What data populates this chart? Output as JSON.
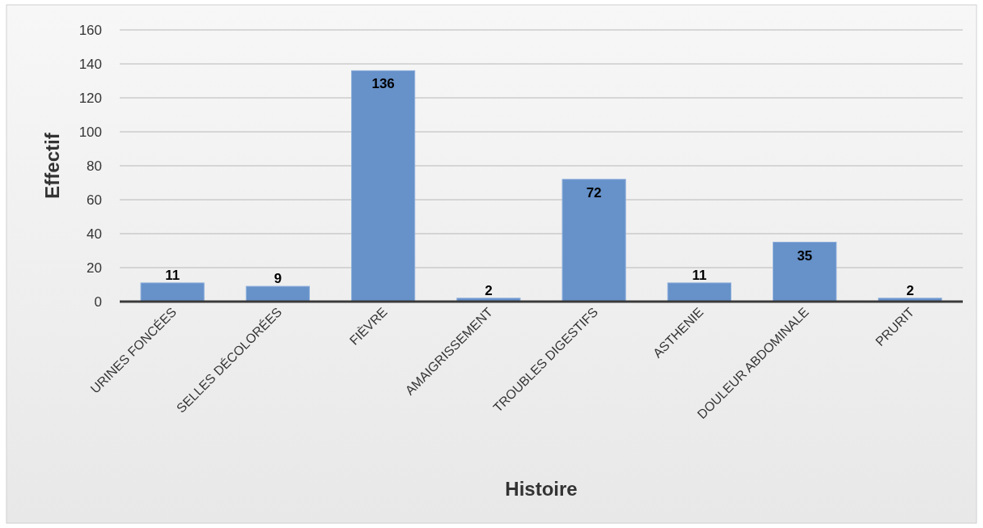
{
  "chart_data": {
    "type": "bar",
    "xlabel": "Histoire",
    "ylabel": "Effectif",
    "categories": [
      "URINES FONCÉES",
      "SELLES DÉCOLORÉES",
      "FIÈVRE",
      "AMAIGRISSEMENT",
      "TROUBLES DIGESTIFS",
      "ASTHENIE",
      "DOULEUR ABDOMINALE",
      "PRURIT"
    ],
    "values": [
      11,
      9,
      136,
      2,
      72,
      11,
      35,
      2
    ],
    "color": "#6691c9",
    "ylim": [
      0,
      160
    ],
    "yticks": [
      0,
      20,
      40,
      60,
      80,
      100,
      120,
      140,
      160
    ],
    "grid": "y",
    "data_labels": true
  }
}
